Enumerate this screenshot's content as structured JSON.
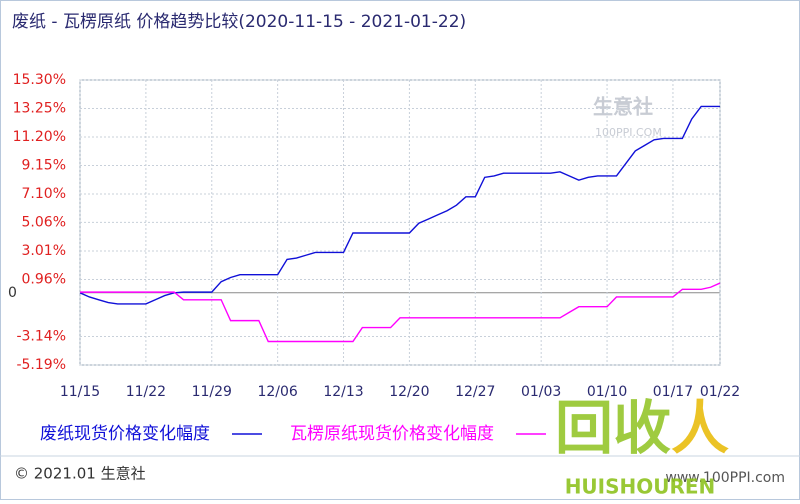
{
  "chart_data": {
    "type": "line",
    "title": "废纸 - 瓦楞原纸 价格趋势比较(2020-11-15 - 2021-01-22)",
    "categories": [
      "11/15",
      null,
      null,
      null,
      null,
      null,
      null,
      "11/22",
      null,
      null,
      null,
      null,
      null,
      null,
      "11/29",
      null,
      null,
      null,
      null,
      null,
      null,
      "12/06",
      null,
      null,
      null,
      null,
      null,
      null,
      "12/13",
      null,
      null,
      null,
      null,
      null,
      null,
      "12/20",
      null,
      null,
      null,
      null,
      null,
      null,
      "12/27",
      null,
      null,
      null,
      null,
      null,
      null,
      "01/03",
      null,
      null,
      null,
      null,
      null,
      null,
      "01/10",
      null,
      null,
      null,
      null,
      null,
      null,
      "01/17",
      null,
      null,
      null,
      null,
      "01/22"
    ],
    "series": [
      {
        "name": "废纸现货价格变化幅度",
        "color": "#1010d8",
        "values": [
          0,
          -0.3,
          -0.5,
          -0.7,
          -0.8,
          -0.8,
          -0.8,
          -0.8,
          -0.5,
          -0.2,
          0,
          0.05,
          0.05,
          0.05,
          0.05,
          0.8,
          1.1,
          1.3,
          1.3,
          1.3,
          1.3,
          1.3,
          2.4,
          2.5,
          2.7,
          2.9,
          2.9,
          2.9,
          2.9,
          4.3,
          4.3,
          4.3,
          4.3,
          4.3,
          4.3,
          4.3,
          5.0,
          5.3,
          5.6,
          5.9,
          6.3,
          6.9,
          6.9,
          8.3,
          8.4,
          8.6,
          8.6,
          8.6,
          8.6,
          8.6,
          8.6,
          8.7,
          8.4,
          8.1,
          8.3,
          8.4,
          8.4,
          8.4,
          9.3,
          10.2,
          10.6,
          11.0,
          11.1,
          11.1,
          11.1,
          12.5,
          13.4,
          13.4,
          13.4
        ]
      },
      {
        "name": "瓦楞原纸现货价格变化幅度",
        "color": "#ff00ff",
        "values": [
          0.05,
          0.05,
          0.05,
          0.05,
          0.05,
          0.05,
          0.05,
          0.05,
          0.05,
          0.05,
          0.05,
          -0.5,
          -0.5,
          -0.5,
          -0.5,
          -0.5,
          -2.0,
          -2.0,
          -2.0,
          -2.0,
          -3.5,
          -3.5,
          -3.5,
          -3.5,
          -3.5,
          -3.5,
          -3.5,
          -3.5,
          -3.5,
          -3.5,
          -2.5,
          -2.5,
          -2.5,
          -2.5,
          -1.8,
          -1.8,
          -1.8,
          -1.8,
          -1.8,
          -1.8,
          -1.8,
          -1.8,
          -1.8,
          -1.8,
          -1.8,
          -1.8,
          -1.8,
          -1.8,
          -1.8,
          -1.8,
          -1.8,
          -1.8,
          -1.4,
          -1.0,
          -1.0,
          -1.0,
          -1.0,
          -0.3,
          -0.3,
          -0.3,
          -0.3,
          -0.3,
          -0.3,
          -0.3,
          0.25,
          0.25,
          0.25,
          0.4,
          0.7
        ]
      }
    ],
    "ylim": [
      -5.19,
      15.3
    ],
    "yticks": [
      {
        "value": -5.19,
        "label": "-5.19%"
      },
      {
        "value": -3.14,
        "label": "-3.14%"
      },
      0,
      {
        "value": 0.96,
        "label": "0.96%"
      },
      {
        "value": 3.01,
        "label": "3.01%"
      },
      {
        "value": 5.06,
        "label": "5.06%"
      },
      {
        "value": 7.1,
        "label": "7.10%"
      },
      {
        "value": 9.15,
        "label": "9.15%"
      },
      {
        "value": 11.2,
        "label": "11.20%"
      },
      {
        "value": 13.25,
        "label": "13.25%"
      },
      {
        "value": 15.3,
        "label": "15.30%"
      }
    ],
    "grid": true,
    "watermark_name": "生意社",
    "watermark_site": "100PPI.COM",
    "footer_left": "© 2021.01 生意社",
    "footer_right": "www.100PPI.com",
    "overlay_logo": "回收",
    "overlay_text": "HUISHOUREN"
  }
}
